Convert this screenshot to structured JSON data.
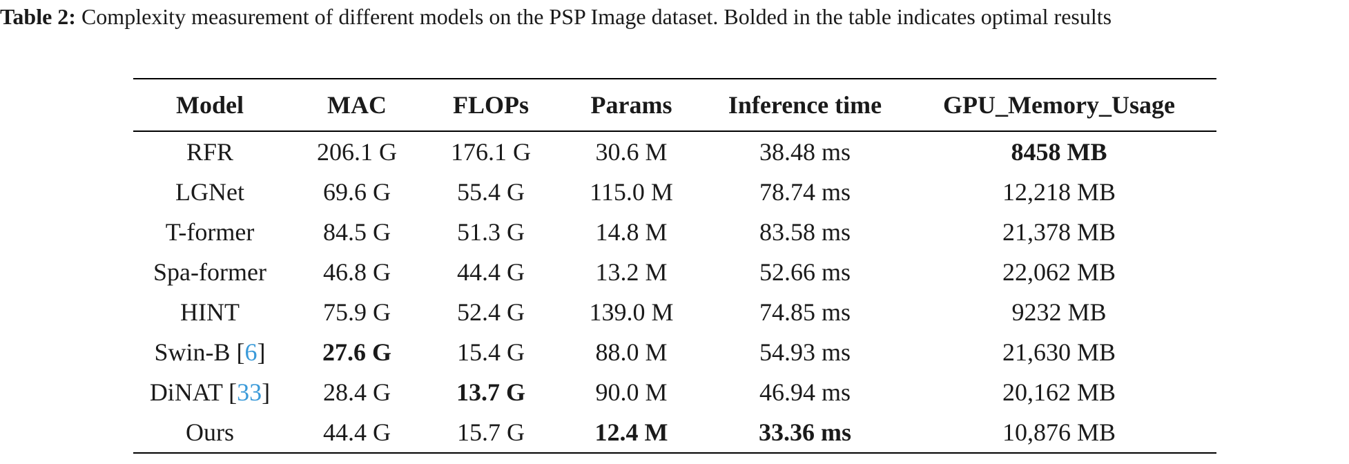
{
  "caption": {
    "label": "Table 2:",
    "text": "Complexity measurement of different models on the PSP Image dataset. Bolded in the table indicates optimal results"
  },
  "table": {
    "header": [
      "Model",
      "MAC",
      "FLOPs",
      "Params",
      "Inference time",
      "GPU_Memory_Usage"
    ],
    "rows": [
      [
        "RFR",
        "206.1 G",
        "176.1 G",
        "30.6 M",
        "38.48 ms",
        {
          "text": "8458 MB",
          "bold": true
        }
      ],
      [
        "LGNet",
        "69.6 G",
        "55.4 G",
        "115.0 M",
        "78.74 ms",
        "12,218 MB"
      ],
      [
        "T-former",
        "84.5 G",
        "51.3 G",
        "14.8 M",
        "83.58 ms",
        "21,378 MB"
      ],
      [
        "Spa-former",
        "46.8 G",
        "44.4 G",
        "13.2 M",
        "52.66 ms",
        "22,062 MB"
      ],
      [
        "HINT",
        "75.9 G",
        "52.4 G",
        "139.0 M",
        "74.85 ms",
        "9232 MB"
      ],
      [
        {
          "text": "Swin-B",
          "cite": "[6]"
        },
        {
          "text": "27.6 G",
          "bold": true
        },
        "15.4 G",
        "88.0 M",
        "54.93 ms",
        "21,630 MB"
      ],
      [
        {
          "text": "DiNAT",
          "cite": "[33]"
        },
        "28.4 G",
        {
          "text": "13.7 G",
          "bold": true
        },
        "90.0 M",
        "46.94 ms",
        "20,162 MB"
      ],
      [
        "Ours",
        "44.4 G",
        "15.7 G",
        {
          "text": "12.4 M",
          "bold": true
        },
        {
          "text": "33.36 ms",
          "bold": true
        },
        "10,876 MB"
      ]
    ]
  }
}
